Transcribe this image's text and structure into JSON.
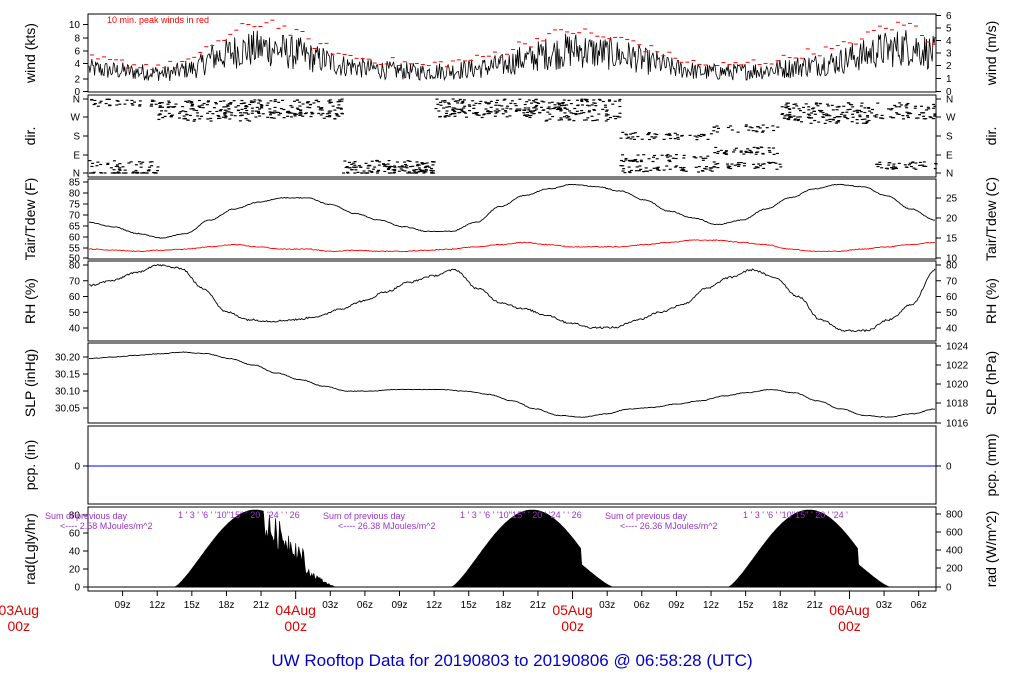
{
  "title": "UW Rooftop Data for 20190803  to  20190806 @ 06:58:28  (UTC)",
  "colors": {
    "title": "#0000cc",
    "date_labels": "#dd0000",
    "peak_wind": "#ff0000",
    "dewpoint": "#ff0000",
    "precip_line": "#0000ff",
    "rad_notes": "#9933cc",
    "frame": "#000000"
  },
  "time_axis": {
    "hour_labels": [
      "09z",
      "12z",
      "15z",
      "18z",
      "21z",
      "03z",
      "06z",
      "09z",
      "12z",
      "15z",
      "18z",
      "21z",
      "03z",
      "06z",
      "09z",
      "12z",
      "15z",
      "18z",
      "21z",
      "03z",
      "06z"
    ],
    "day_labels": [
      {
        "date": "03Aug",
        "hour": "00z"
      },
      {
        "date": "04Aug",
        "hour": "00z"
      },
      {
        "date": "05Aug",
        "hour": "00z"
      },
      {
        "date": "06Aug",
        "hour": "00z"
      }
    ]
  },
  "chart_data": [
    {
      "type": "line",
      "id": "wind",
      "ylabel_left": "wind (kts)",
      "ylabel_right": "wind (m/s)",
      "annotation": "10 min. peak winds in red",
      "y_ticks_left": [
        "0",
        "2",
        "4",
        "6",
        "8",
        "10"
      ],
      "y_ticks_right": [
        "0",
        "1",
        "2",
        "3",
        "4",
        "5",
        "6"
      ],
      "ylim": [
        0,
        12
      ],
      "series": [
        {
          "values": [
            3.5,
            3.2,
            3.0,
            2.8,
            3.5,
            5.5,
            6.5,
            6.8,
            6.0,
            5.0,
            4.0,
            3.5,
            3.2,
            3.0,
            3.2,
            3.5,
            4.0,
            5.0,
            6.0,
            6.5,
            6.0,
            5.5,
            4.5,
            3.5,
            3.0,
            3.0,
            3.2,
            3.5,
            4.0,
            4.5,
            5.5,
            6.5,
            7.0,
            6.0
          ]
        },
        {
          "values": [
            5.0,
            4.5,
            4.0,
            4.0,
            5.0,
            8.0,
            10.0,
            11.0,
            9.0,
            7.0,
            5.5,
            5.0,
            4.5,
            4.0,
            4.5,
            5.0,
            6.0,
            7.5,
            9.0,
            9.5,
            8.5,
            8.0,
            6.5,
            5.0,
            4.0,
            4.0,
            4.5,
            5.0,
            6.0,
            6.5,
            8.0,
            10.0,
            10.5,
            8.0
          ]
        }
      ]
    },
    {
      "type": "scatter",
      "id": "direction",
      "ylabel_left": "dir.",
      "ylabel_right": "dir.",
      "y_ticks_left": [
        "N",
        "E",
        "S",
        "W",
        "N"
      ],
      "y_ticks_right": [
        "N",
        "E",
        "S",
        "W",
        "N"
      ]
    },
    {
      "type": "line",
      "id": "temperature",
      "ylabel_left": "Tair/Tdew (F)",
      "ylabel_right": "Tair/Tdew (C)",
      "y_ticks_left": [
        "50",
        "55",
        "60",
        "65",
        "70",
        "75",
        "80",
        "85"
      ],
      "y_ticks_right": [
        "10",
        "15",
        "20",
        "25"
      ],
      "ylim": [
        50,
        85
      ],
      "series": [
        {
          "values": [
            66,
            64,
            61,
            59,
            61,
            67,
            72,
            75,
            77,
            77,
            74,
            70,
            67,
            64,
            62,
            62,
            66,
            73,
            78,
            81,
            83,
            82,
            80,
            76,
            71,
            68,
            65,
            67,
            72,
            77,
            81,
            83,
            82,
            78,
            72,
            67
          ]
        },
        {
          "values": [
            54,
            53.5,
            53,
            53.5,
            54,
            55,
            56,
            55,
            54,
            54,
            53,
            53.5,
            53,
            53,
            53.5,
            54,
            55,
            56,
            57,
            56,
            55,
            55,
            55,
            56,
            57,
            58,
            58,
            57,
            56,
            54,
            53,
            53,
            54,
            55,
            56,
            57
          ]
        }
      ]
    },
    {
      "type": "line",
      "id": "rh",
      "ylabel_left": "RH (%)",
      "ylabel_right": "RH (%)",
      "y_ticks_left": [
        "40",
        "50",
        "60",
        "70",
        "80"
      ],
      "y_ticks_right": [
        "40",
        "50",
        "60",
        "70",
        "80"
      ],
      "ylim": [
        32,
        82
      ],
      "series": [
        {
          "values": [
            67,
            70,
            75,
            80,
            78,
            65,
            50,
            45,
            44,
            45,
            47,
            52,
            57,
            63,
            69,
            73,
            77,
            65,
            56,
            52,
            48,
            43,
            40,
            40,
            45,
            50,
            55,
            65,
            72,
            77,
            72,
            60,
            45,
            38,
            38,
            45,
            55,
            77
          ]
        }
      ]
    },
    {
      "type": "line",
      "id": "slp",
      "ylabel_left": "SLP (inHg)",
      "ylabel_right": "SLP (hPa)",
      "y_ticks_left": [
        "30.05",
        "30.10",
        "30.15",
        "30.20"
      ],
      "y_ticks_right": [
        "1016",
        "1018",
        "1020",
        "1022",
        "1024"
      ],
      "ylim": [
        30.01,
        30.25
      ],
      "series": [
        {
          "values": [
            30.205,
            30.21,
            30.215,
            30.22,
            30.225,
            30.22,
            30.205,
            30.185,
            30.16,
            30.14,
            30.12,
            30.105,
            30.105,
            30.11,
            30.11,
            30.11,
            30.105,
            30.095,
            30.075,
            30.05,
            30.03,
            30.025,
            30.035,
            30.05,
            30.055,
            30.065,
            30.075,
            30.09,
            30.1,
            30.11,
            30.1,
            30.075,
            30.05,
            30.03,
            30.025,
            30.035,
            30.05
          ]
        }
      ]
    },
    {
      "type": "line",
      "id": "precip",
      "ylabel_left": "pcp. (in)",
      "ylabel_right": "pcp. (mm)",
      "y_ticks_left": [
        "0"
      ],
      "y_ticks_right": [
        "0"
      ],
      "series": [
        {
          "values": [
            0,
            0
          ]
        }
      ]
    },
    {
      "type": "area",
      "id": "radiation",
      "ylabel_left": "rad(Lgly/hr)",
      "ylabel_right": "rad (W/m^2)",
      "y_ticks_left": [
        "0",
        "20",
        "40",
        "60",
        "80"
      ],
      "y_ticks_right": [
        "0",
        "200",
        "400",
        "600",
        "800"
      ],
      "ylim": [
        0,
        82
      ],
      "notes": [
        {
          "line1": "Sum of previous day",
          "line2": "<---- 2.58 MJoules/m^2",
          "hours": "1 ' 3 ' '6 ' '10''15'' ' 20 ' '24 ' ' 26"
        },
        {
          "line1": "Sum of previous day",
          "line2": "<---- 26.38 MJoules/m^2",
          "hours": "1 ' 3 ' '6 ' '10''15'' ' 20 ' '24 ' ' 26"
        },
        {
          "line1": "Sum of previous day",
          "line2": "<---- 26.36 MJoules/m^2",
          "hours": "1 ' 3 ' '6 ' '10''15'' ' 20 ' '24 '"
        }
      ],
      "days": [
        {
          "start_hour": 13.5,
          "end_hour": 27.5,
          "peak": 81
        },
        {
          "start_hour": 37.5,
          "end_hour": 51.5,
          "peak": 81
        },
        {
          "start_hour": 61.5,
          "end_hour": 75.5,
          "peak": 81
        }
      ]
    }
  ]
}
